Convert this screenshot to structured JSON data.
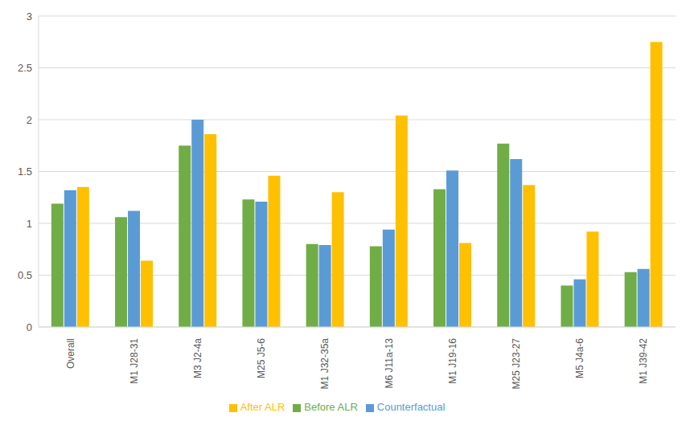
{
  "chart_data": {
    "type": "bar",
    "categories": [
      "Overall",
      "M1 J28-31",
      "M3 J2-4a",
      "M25 J5-6",
      "M1 J32-35a",
      "M6 J11a-13",
      "M1 J19-16",
      "M25 J23-27",
      "M5 J4a-6",
      "M1 J39-42"
    ],
    "series": [
      {
        "name": "Before ALR",
        "color": "#70ad47",
        "values": [
          1.19,
          1.06,
          1.75,
          1.23,
          0.8,
          0.78,
          1.33,
          1.77,
          0.4,
          0.53
        ]
      },
      {
        "name": "Counterfactual",
        "color": "#5b9bd5",
        "values": [
          1.32,
          1.12,
          2.0,
          1.21,
          0.79,
          0.94,
          1.51,
          1.62,
          0.46,
          0.56
        ]
      },
      {
        "name": "After ALR",
        "color": "#ffc000",
        "values": [
          1.35,
          0.64,
          1.86,
          1.46,
          1.3,
          2.04,
          0.81,
          1.37,
          0.92,
          2.75
        ]
      }
    ],
    "ylim": [
      0,
      3
    ],
    "yticks": [
      0,
      0.5,
      1,
      1.5,
      2,
      2.5,
      3
    ],
    "grid": true,
    "legend": "bottom"
  }
}
